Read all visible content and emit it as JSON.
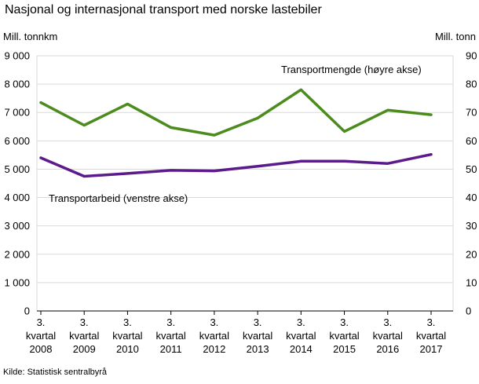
{
  "chart_data": {
    "type": "line",
    "title": "Nasjonal og internasjonal transport med norske lastebiler",
    "ylabel_left": "Mill. tonnkm",
    "ylabel_right": "Mill. tonn",
    "source": "Kilde: Statistisk sentralbyrå",
    "categories": [
      [
        "3.",
        "kvartal",
        "2008"
      ],
      [
        "3.",
        "kvartal",
        "2009"
      ],
      [
        "3.",
        "kvartal",
        "2010"
      ],
      [
        "3.",
        "kvartal",
        "2011"
      ],
      [
        "3.",
        "kvartal",
        "2012"
      ],
      [
        "3.",
        "kvartal",
        "2013"
      ],
      [
        "3.",
        "kvartal",
        "2014"
      ],
      [
        "3.",
        "kvartal",
        "2015"
      ],
      [
        "3.",
        "kvartal",
        "2016"
      ],
      [
        "3.",
        "kvartal",
        "2017"
      ]
    ],
    "ylim_left": [
      0,
      9000
    ],
    "ylim_right": [
      0,
      90
    ],
    "yticks_left": [
      "0",
      "1 000",
      "2 000",
      "3 000",
      "4 000",
      "5 000",
      "6 000",
      "7 000",
      "8 000",
      "9 000"
    ],
    "yticks_right": [
      "0",
      "10",
      "20",
      "30",
      "40",
      "50",
      "60",
      "70",
      "80",
      "90"
    ],
    "grid": true,
    "series": [
      {
        "name": "Transportmengde  (høyre akse)",
        "axis": "right",
        "color": "#4c8c1e",
        "values": [
          73.5,
          65.5,
          73,
          64.7,
          62,
          68,
          78,
          63.3,
          70.8,
          69.2
        ]
      },
      {
        "name": "Transportarbeid  (venstre akse)",
        "axis": "left",
        "color": "#5c1a8a",
        "values": [
          5400,
          4750,
          4850,
          4960,
          4940,
          5100,
          5280,
          5280,
          5200,
          5520
        ]
      }
    ]
  }
}
